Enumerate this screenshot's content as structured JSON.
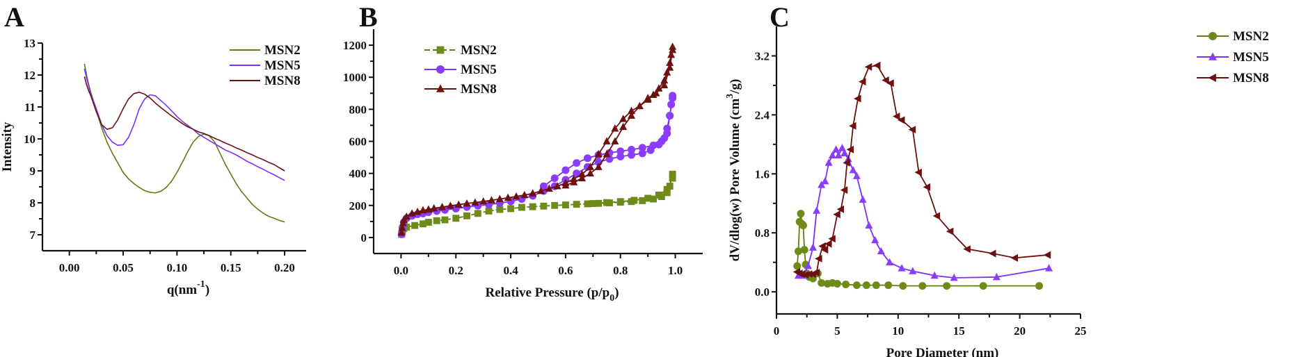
{
  "figure": {
    "panels": [
      "A",
      "B",
      "C"
    ]
  },
  "colors": {
    "MSN2": "#5e7d0f",
    "MSN5": "#7b2ff7",
    "MSN8": "#6b0f0f",
    "MSN2_marker": "#6e8b1a",
    "MSN5_marker": "#8a3cff",
    "MSN8_marker": "#6e1111"
  },
  "chart_data": [
    {
      "panel": "A",
      "type": "line",
      "title": "",
      "xlabel": "q(nm",
      "xlabel_superscript": "-1",
      "xlabel_suffix": ")",
      "ylabel": "Intensity",
      "xlim": [
        -0.025,
        0.22
      ],
      "ylim": [
        6.5,
        13
      ],
      "xticks": [
        "0.00",
        "0.05",
        "0.10",
        "0.15",
        "0.20"
      ],
      "xtick_values": [
        0.0,
        0.05,
        0.1,
        0.15,
        0.2
      ],
      "yticks": [
        "7",
        "8",
        "9",
        "10",
        "11",
        "12",
        "13"
      ],
      "ytick_values": [
        7,
        8,
        9,
        10,
        11,
        12,
        13
      ],
      "grid": false,
      "legend": "top-right",
      "series": [
        {
          "name": "MSN2",
          "x": [
            0.014,
            0.016,
            0.018,
            0.02,
            0.025,
            0.03,
            0.035,
            0.04,
            0.045,
            0.05,
            0.055,
            0.06,
            0.065,
            0.07,
            0.075,
            0.08,
            0.085,
            0.09,
            0.095,
            0.1,
            0.105,
            0.11,
            0.115,
            0.12,
            0.125,
            0.13,
            0.135,
            0.14,
            0.145,
            0.15,
            0.155,
            0.16,
            0.165,
            0.17,
            0.175,
            0.18,
            0.185,
            0.19,
            0.195,
            0.2
          ],
          "y": [
            12.35,
            12.0,
            11.7,
            11.45,
            10.9,
            10.35,
            9.9,
            9.55,
            9.25,
            8.95,
            8.75,
            8.6,
            8.48,
            8.38,
            8.33,
            8.31,
            8.36,
            8.48,
            8.68,
            8.95,
            9.27,
            9.6,
            9.9,
            10.08,
            10.15,
            10.1,
            9.9,
            9.55,
            9.2,
            8.9,
            8.6,
            8.35,
            8.15,
            7.95,
            7.8,
            7.68,
            7.58,
            7.52,
            7.45,
            7.4
          ]
        },
        {
          "name": "MSN5",
          "x": [
            0.014,
            0.016,
            0.018,
            0.02,
            0.025,
            0.03,
            0.035,
            0.04,
            0.045,
            0.05,
            0.055,
            0.06,
            0.065,
            0.07,
            0.075,
            0.08,
            0.085,
            0.09,
            0.095,
            0.1,
            0.105,
            0.11,
            0.115,
            0.12,
            0.125,
            0.13,
            0.135,
            0.14,
            0.145,
            0.15,
            0.155,
            0.16,
            0.165,
            0.17,
            0.175,
            0.18,
            0.185,
            0.19,
            0.195,
            0.2
          ],
          "y": [
            12.2,
            11.9,
            11.65,
            11.4,
            10.95,
            10.45,
            10.1,
            9.9,
            9.8,
            9.82,
            10.05,
            10.45,
            10.95,
            11.25,
            11.38,
            11.35,
            11.2,
            11.05,
            10.88,
            10.7,
            10.55,
            10.42,
            10.3,
            10.15,
            10.05,
            9.95,
            9.85,
            9.75,
            9.65,
            9.58,
            9.5,
            9.4,
            9.3,
            9.22,
            9.13,
            9.05,
            8.96,
            8.88,
            8.79,
            8.7
          ]
        },
        {
          "name": "MSN8",
          "x": [
            0.014,
            0.016,
            0.018,
            0.02,
            0.025,
            0.03,
            0.035,
            0.04,
            0.045,
            0.05,
            0.055,
            0.06,
            0.065,
            0.07,
            0.075,
            0.08,
            0.085,
            0.09,
            0.095,
            0.1,
            0.105,
            0.11,
            0.115,
            0.12,
            0.125,
            0.13,
            0.135,
            0.14,
            0.145,
            0.15,
            0.155,
            0.16,
            0.165,
            0.17,
            0.175,
            0.18,
            0.185,
            0.19,
            0.195,
            0.2
          ],
          "y": [
            11.95,
            11.7,
            11.5,
            11.35,
            10.85,
            10.45,
            10.3,
            10.35,
            10.6,
            10.95,
            11.25,
            11.42,
            11.46,
            11.4,
            11.28,
            11.12,
            10.98,
            10.85,
            10.72,
            10.6,
            10.48,
            10.38,
            10.3,
            10.22,
            10.17,
            10.1,
            10.02,
            9.95,
            9.87,
            9.8,
            9.72,
            9.65,
            9.57,
            9.5,
            9.42,
            9.35,
            9.27,
            9.2,
            9.1,
            9.0
          ]
        }
      ]
    },
    {
      "panel": "B",
      "type": "scatter",
      "title": "",
      "xlabel": "Relative Pressure (p/p",
      "xlabel_subscript": "0",
      "xlabel_suffix": ")",
      "ylabel": "",
      "xlim": [
        -0.1,
        1.1
      ],
      "ylim": [
        -100,
        1300
      ],
      "xticks": [
        "0.0",
        "0.2",
        "0.4",
        "0.6",
        "0.8",
        "1.0"
      ],
      "xtick_values": [
        0.0,
        0.2,
        0.4,
        0.6,
        0.8,
        1.0
      ],
      "yticks": [
        "0",
        "200",
        "400",
        "600",
        "800",
        "1000",
        "1200"
      ],
      "ytick_values": [
        0,
        200,
        400,
        600,
        800,
        1000,
        1200
      ],
      "grid": false,
      "legend": "top-left",
      "series": [
        {
          "name": "MSN2",
          "marker": "square",
          "x": [
            0.002,
            0.005,
            0.01,
            0.02,
            0.05,
            0.08,
            0.1,
            0.13,
            0.16,
            0.2,
            0.24,
            0.28,
            0.32,
            0.36,
            0.4,
            0.44,
            0.48,
            0.52,
            0.56,
            0.6,
            0.64,
            0.68,
            0.72,
            0.76,
            0.8,
            0.84,
            0.88,
            0.92,
            0.95,
            0.97,
            0.98,
            0.99,
            0.99,
            0.97,
            0.94,
            0.9,
            0.85,
            0.8,
            0.75,
            0.7
          ],
          "y": [
            20,
            40,
            55,
            65,
            75,
            85,
            95,
            105,
            110,
            120,
            135,
            150,
            165,
            175,
            180,
            188,
            192,
            196,
            200,
            203,
            207,
            210,
            213,
            216,
            220,
            224,
            230,
            240,
            255,
            280,
            320,
            395,
            370,
            300,
            265,
            245,
            232,
            224,
            218,
            212
          ]
        },
        {
          "name": "MSN5",
          "marker": "circle",
          "x": [
            0.002,
            0.005,
            0.01,
            0.02,
            0.04,
            0.06,
            0.08,
            0.1,
            0.13,
            0.16,
            0.2,
            0.24,
            0.28,
            0.32,
            0.36,
            0.4,
            0.44,
            0.48,
            0.52,
            0.56,
            0.6,
            0.64,
            0.68,
            0.72,
            0.76,
            0.8,
            0.84,
            0.88,
            0.91,
            0.94,
            0.96,
            0.97,
            0.98,
            0.985,
            0.99,
            0.99,
            0.98,
            0.97,
            0.95,
            0.92,
            0.88,
            0.84,
            0.8,
            0.76,
            0.72,
            0.68,
            0.64,
            0.6,
            0.56,
            0.52
          ],
          "y": [
            20,
            60,
            95,
            120,
            135,
            145,
            150,
            158,
            165,
            172,
            180,
            190,
            198,
            205,
            215,
            225,
            240,
            260,
            290,
            320,
            360,
            400,
            440,
            470,
            490,
            505,
            515,
            525,
            545,
            580,
            620,
            680,
            760,
            830,
            885,
            870,
            760,
            650,
            600,
            575,
            560,
            548,
            538,
            528,
            515,
            495,
            465,
            420,
            370,
            320
          ]
        },
        {
          "name": "MSN8",
          "marker": "triangle",
          "x": [
            0.002,
            0.004,
            0.007,
            0.01,
            0.02,
            0.04,
            0.06,
            0.08,
            0.1,
            0.12,
            0.15,
            0.18,
            0.21,
            0.24,
            0.27,
            0.3,
            0.33,
            0.36,
            0.39,
            0.42,
            0.45,
            0.48,
            0.51,
            0.54,
            0.57,
            0.6,
            0.63,
            0.66,
            0.69,
            0.72,
            0.75,
            0.78,
            0.81,
            0.84,
            0.87,
            0.9,
            0.92,
            0.94,
            0.96,
            0.97,
            0.98,
            0.985,
            0.99,
            0.99,
            0.98,
            0.96,
            0.93,
            0.9,
            0.87,
            0.84,
            0.81,
            0.78,
            0.75,
            0.72,
            0.69,
            0.66,
            0.63,
            0.6
          ],
          "y": [
            30,
            60,
            90,
            110,
            130,
            150,
            160,
            170,
            175,
            182,
            190,
            198,
            205,
            212,
            218,
            225,
            232,
            240,
            248,
            256,
            265,
            275,
            290,
            305,
            320,
            340,
            365,
            395,
            440,
            520,
            600,
            680,
            740,
            790,
            820,
            860,
            890,
            930,
            980,
            1030,
            1090,
            1140,
            1190,
            1170,
            1060,
            950,
            900,
            870,
            820,
            760,
            690,
            600,
            520,
            440,
            400,
            370,
            345,
            325
          ]
        }
      ]
    },
    {
      "panel": "C",
      "type": "line",
      "title": "",
      "xlabel": "Pore Diameter (nm)",
      "ylabel": "dV/dlog(w) Pore Volume (cm",
      "ylabel_superscript": "3",
      "ylabel_suffix": "/g)",
      "xlim": [
        0,
        25
      ],
      "ylim": [
        -0.3,
        3.6
      ],
      "xticks": [
        "0",
        "5",
        "10",
        "15",
        "20",
        "25"
      ],
      "xtick_values": [
        0,
        5,
        10,
        15,
        20,
        25
      ],
      "yticks": [
        "0.0",
        "0.8",
        "1.6",
        "2.4",
        "3.2"
      ],
      "ytick_values": [
        0.0,
        0.8,
        1.6,
        2.4,
        3.2
      ],
      "grid": false,
      "legend": "top-right",
      "series": [
        {
          "name": "MSN2",
          "marker": "circle",
          "x": [
            1.7,
            1.8,
            1.9,
            2.0,
            2.1,
            2.2,
            2.3,
            2.4,
            2.5,
            2.7,
            3.0,
            3.4,
            3.7,
            4.2,
            4.6,
            5.0,
            5.7,
            6.6,
            7.4,
            8.2,
            9.2,
            10.4,
            12.0,
            14.0,
            17.0,
            21.6
          ],
          "y": [
            0.35,
            0.55,
            0.95,
            1.06,
            0.92,
            0.9,
            0.57,
            0.37,
            0.25,
            0.2,
            0.18,
            0.25,
            0.12,
            0.11,
            0.12,
            0.11,
            0.1,
            0.09,
            0.09,
            0.09,
            0.09,
            0.08,
            0.08,
            0.08,
            0.08,
            0.08
          ]
        },
        {
          "name": "MSN5",
          "marker": "triangle",
          "x": [
            1.8,
            2.2,
            2.6,
            3.0,
            3.3,
            3.7,
            4.0,
            4.3,
            4.6,
            4.9,
            5.1,
            5.4,
            5.6,
            5.9,
            6.3,
            6.6,
            7.1,
            7.6,
            8.1,
            8.6,
            9.3,
            10.3,
            11.2,
            13.0,
            14.6,
            18.1,
            22.4
          ],
          "y": [
            0.22,
            0.22,
            0.35,
            0.6,
            1.1,
            1.45,
            1.5,
            1.75,
            1.85,
            1.93,
            1.85,
            1.95,
            1.88,
            1.8,
            1.65,
            1.57,
            1.25,
            0.9,
            0.7,
            0.55,
            0.4,
            0.32,
            0.28,
            0.22,
            0.19,
            0.2,
            0.32
          ]
        },
        {
          "name": "MSN8",
          "marker": "triangle-left",
          "x": [
            1.7,
            1.9,
            2.1,
            2.4,
            2.7,
            3.0,
            3.3,
            3.5,
            3.8,
            4.0,
            4.3,
            4.6,
            5.0,
            5.3,
            5.6,
            5.8,
            6.1,
            6.3,
            6.7,
            7.1,
            7.6,
            8.3,
            9.0,
            9.4,
            9.9,
            10.3,
            11.2,
            11.7,
            12.4,
            13.2,
            14.3,
            15.7,
            17.8,
            19.6,
            22.3
          ],
          "y": [
            0.27,
            0.25,
            0.24,
            0.23,
            0.24,
            0.24,
            0.26,
            0.45,
            0.62,
            0.57,
            0.65,
            0.72,
            1.05,
            1.12,
            1.38,
            1.75,
            1.93,
            2.25,
            2.62,
            2.85,
            3.05,
            3.07,
            2.87,
            2.83,
            2.38,
            2.33,
            2.2,
            1.62,
            1.42,
            1.03,
            0.82,
            0.58,
            0.52,
            0.46,
            0.5
          ]
        }
      ]
    }
  ]
}
